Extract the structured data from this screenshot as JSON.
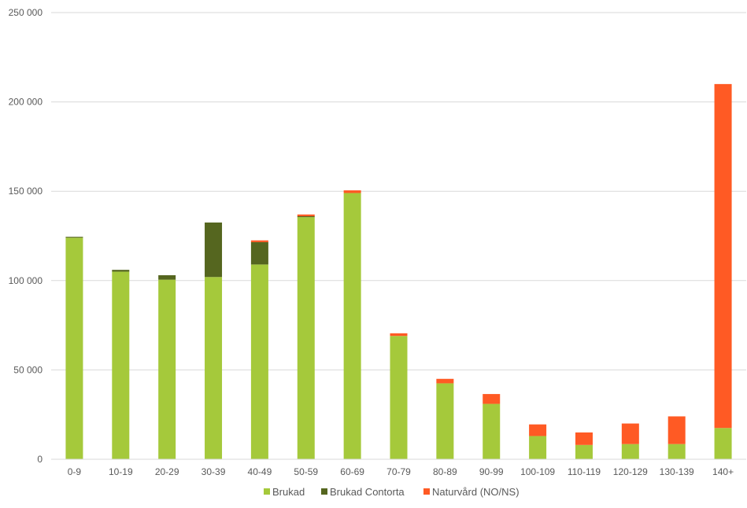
{
  "chart_data": {
    "type": "bar",
    "stacked": true,
    "categories": [
      "0-9",
      "10-19",
      "20-29",
      "30-39",
      "40-49",
      "50-59",
      "60-69",
      "70-79",
      "80-89",
      "90-99",
      "100-109",
      "110-119",
      "120-129",
      "130-139",
      "140+"
    ],
    "series": [
      {
        "name": "Brukad",
        "color": "#A5C93B",
        "values": [
          124000,
          105000,
          100500,
          102000,
          109000,
          135500,
          149000,
          69000,
          42500,
          31000,
          13000,
          8000,
          8500,
          8500,
          17500
        ]
      },
      {
        "name": "Brukad Contorta",
        "color": "#55661F",
        "values": [
          500,
          1000,
          2500,
          30500,
          12500,
          500,
          0,
          0,
          0,
          0,
          0,
          0,
          0,
          0,
          0
        ]
      },
      {
        "name": "Naturvård (NO/NS)",
        "color": "#FF5A24",
        "values": [
          0,
          0,
          0,
          0,
          1000,
          1000,
          1500,
          1500,
          2500,
          5500,
          6500,
          7000,
          11500,
          15500,
          192500
        ]
      }
    ],
    "ylim": [
      0,
      250000
    ],
    "yticks": [
      "0",
      "50 000",
      "100 000",
      "150 000",
      "200 000",
      "250 000"
    ],
    "ytick_values": [
      0,
      50000,
      100000,
      150000,
      200000,
      250000
    ],
    "grid": true,
    "legend_position": "bottom"
  }
}
